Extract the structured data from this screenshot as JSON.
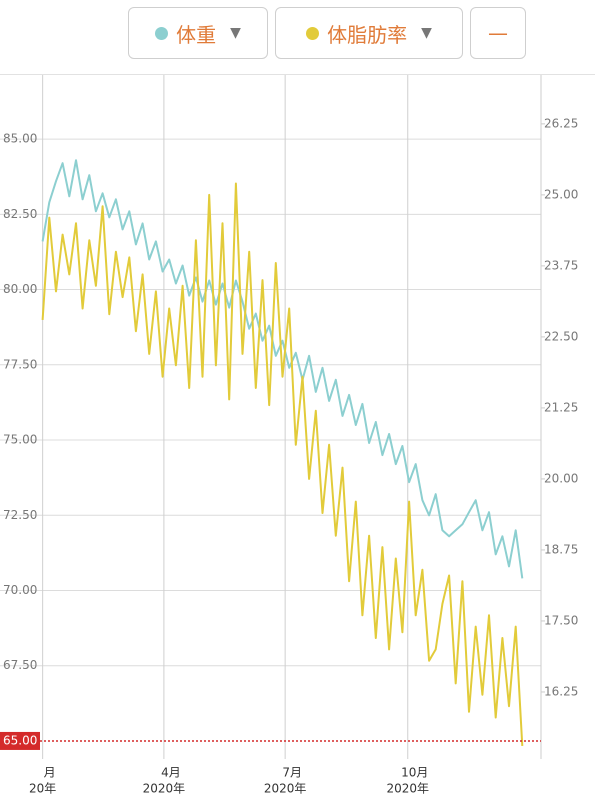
{
  "toolbar": {
    "minus_button": "—"
  },
  "chart_data": {
    "type": "line",
    "x": [
      0,
      5,
      10,
      15,
      20,
      25,
      30,
      35,
      40,
      45,
      50,
      55,
      60,
      65,
      70,
      75,
      80,
      85,
      90,
      95,
      100,
      105,
      110,
      115,
      120,
      125,
      130,
      135,
      140,
      145,
      150,
      155,
      160,
      165,
      170,
      175,
      180,
      185,
      190,
      195,
      200,
      205,
      210,
      215,
      220,
      225,
      230,
      235,
      240,
      245,
      250,
      255,
      260,
      265,
      270,
      275,
      280,
      285,
      290,
      295,
      300,
      305,
      310,
      315,
      320,
      325,
      330,
      335,
      340,
      345,
      350,
      355,
      360
    ],
    "xlim": [
      -32,
      374
    ],
    "xticks": [
      {
        "value": 0,
        "label": "月",
        "year": "20年"
      },
      {
        "value": 91,
        "label": "4月",
        "year": "2020年"
      },
      {
        "value": 182,
        "label": "7月",
        "year": "2020年"
      },
      {
        "value": 274,
        "label": "10月",
        "year": "2020年"
      }
    ],
    "ylim": [
      64.4,
      87.13
    ],
    "yticks": [
      {
        "value": 67.5,
        "label": "67.50"
      },
      {
        "value": 70,
        "label": "70.00"
      },
      {
        "value": 72.5,
        "label": "72.50"
      },
      {
        "value": 75,
        "label": "75.00"
      },
      {
        "value": 77.5,
        "label": "77.50"
      },
      {
        "value": 80,
        "label": "80.00"
      },
      {
        "value": 82.5,
        "label": "82.50"
      },
      {
        "value": 85,
        "label": "85.00"
      }
    ],
    "y2lim": [
      15.07,
      27.11
    ],
    "y2ticks": [
      16.25,
      {
        "value": 17.5,
        "label": "17.50"
      },
      18.75,
      {
        "value": 20,
        "label": "20.00"
      },
      21.25,
      {
        "value": 22.5,
        "label": "22.50"
      },
      23.75,
      {
        "value": 25,
        "label": "25.00"
      },
      26.25
    ],
    "grid": true,
    "reference_line": {
      "value": 65,
      "label": "65.00",
      "color": "#d42a2a"
    },
    "series": [
      {
        "name": "体重",
        "color": "#8ccfd0",
        "values": [
          81.6,
          82.9,
          83.6,
          84.2,
          83.1,
          84.3,
          83.0,
          83.8,
          82.6,
          83.2,
          82.4,
          83.0,
          82.0,
          82.6,
          81.5,
          82.2,
          81.0,
          81.6,
          80.6,
          81.0,
          80.2,
          80.8,
          79.8,
          80.4,
          79.6,
          80.3,
          79.5,
          80.2,
          79.4,
          80.3,
          79.6,
          78.7,
          79.2,
          78.3,
          78.8,
          77.8,
          78.3,
          77.4,
          77.9,
          77.0,
          77.8,
          76.6,
          77.4,
          76.3,
          77.0,
          75.8,
          76.5,
          75.5,
          76.2,
          74.9,
          75.6,
          74.5,
          75.2,
          74.2,
          74.8,
          73.6,
          74.2,
          73.0,
          72.5,
          73.2,
          72.0,
          71.8,
          72.0,
          72.2,
          72.6,
          73.0,
          72.0,
          72.6,
          71.2,
          71.8,
          70.8,
          72.0,
          70.4
        ]
      },
      {
        "name": "体脂肪率",
        "color": "#e2cb3a",
        "axis": "y2",
        "values": [
          22.8,
          24.6,
          23.3,
          24.3,
          23.6,
          24.5,
          23.0,
          24.2,
          23.4,
          24.8,
          22.9,
          24.0,
          23.2,
          23.9,
          22.6,
          23.6,
          22.2,
          23.3,
          21.8,
          23.0,
          22.0,
          23.4,
          21.6,
          24.2,
          21.8,
          25.0,
          22.0,
          24.5,
          21.4,
          25.2,
          22.2,
          24.0,
          21.6,
          23.5,
          21.3,
          23.8,
          21.8,
          23.0,
          20.6,
          21.8,
          20.0,
          21.2,
          19.4,
          20.6,
          19.0,
          20.2,
          18.2,
          19.6,
          17.6,
          19.0,
          17.2,
          18.8,
          17.0,
          18.6,
          17.3,
          19.6,
          17.6,
          18.4,
          16.8,
          17.0,
          17.8,
          18.3,
          16.4,
          18.2,
          15.9,
          17.4,
          16.2,
          17.6,
          15.8,
          17.2,
          16.0,
          17.4,
          15.3
        ]
      }
    ]
  }
}
